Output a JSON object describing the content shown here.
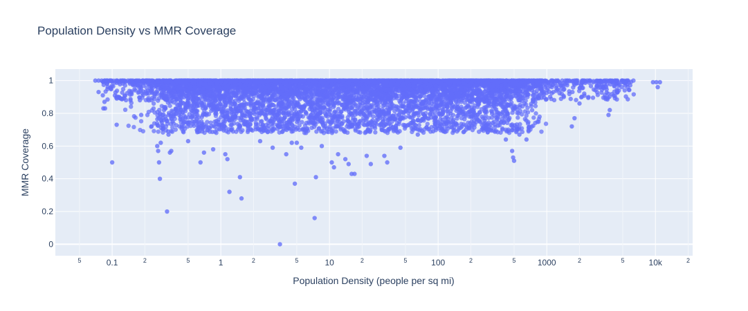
{
  "chart_data": {
    "type": "scatter",
    "title": "Population Density vs MMR Coverage",
    "xlabel": "Population Density (people per sq mi)",
    "ylabel": "MMR Coverage",
    "x_scale": "log",
    "xlim": [
      0.03,
      22000
    ],
    "ylim": [
      -0.07,
      1.07
    ],
    "grid": true,
    "y_ticks": [
      "0",
      "0.2",
      "0.4",
      "0.6",
      "0.8",
      "1"
    ],
    "x_major_ticks": [
      {
        "value": 0.1,
        "label": "0.1"
      },
      {
        "value": 1,
        "label": "1"
      },
      {
        "value": 10,
        "label": "10"
      },
      {
        "value": 100,
        "label": "100"
      },
      {
        "value": 1000,
        "label": "1000"
      },
      {
        "value": 10000,
        "label": "10k"
      }
    ],
    "x_minor_ticks": [
      {
        "value": 0.05,
        "label": "5"
      },
      {
        "value": 0.2,
        "label": "2"
      },
      {
        "value": 0.5,
        "label": "5"
      },
      {
        "value": 2,
        "label": "2"
      },
      {
        "value": 5,
        "label": "5"
      },
      {
        "value": 20,
        "label": "2"
      },
      {
        "value": 50,
        "label": "5"
      },
      {
        "value": 200,
        "label": "2"
      },
      {
        "value": 500,
        "label": "5"
      },
      {
        "value": 2000,
        "label": "2"
      },
      {
        "value": 5000,
        "label": "5"
      },
      {
        "value": 20000,
        "label": "2"
      }
    ],
    "marker_color": "#636efa",
    "plot_bg": "#e5ecf6",
    "series": [
      {
        "points": [
          [
            0.07,
            1.0
          ],
          [
            0.075,
            1.0
          ],
          [
            0.08,
            1.0
          ],
          [
            0.085,
            1.0
          ],
          [
            0.09,
            1.0
          ],
          [
            0.095,
            1.0
          ],
          [
            0.075,
            0.93
          ],
          [
            0.082,
            0.91
          ],
          [
            0.085,
            0.87
          ],
          [
            0.083,
            0.83
          ],
          [
            0.086,
            0.83
          ],
          [
            0.09,
            0.98
          ],
          [
            0.1,
            0.5
          ],
          [
            0.11,
            0.73
          ],
          [
            0.115,
            0.9
          ],
          [
            0.12,
            0.89
          ],
          [
            0.125,
            1.0
          ],
          [
            0.13,
            1.0
          ],
          [
            0.14,
            1.0
          ],
          [
            0.17,
            0.97
          ],
          [
            0.18,
            0.88
          ],
          [
            0.185,
            0.79
          ],
          [
            0.19,
            0.92
          ],
          [
            0.25,
            0.92
          ],
          [
            0.26,
            0.6
          ],
          [
            0.265,
            0.57
          ],
          [
            0.27,
            0.5
          ],
          [
            0.275,
            0.4
          ],
          [
            0.28,
            0.62
          ],
          [
            0.3,
            0.82
          ],
          [
            0.31,
            0.78
          ],
          [
            0.32,
            0.2
          ],
          [
            0.33,
            0.67
          ],
          [
            0.34,
            0.56
          ],
          [
            0.35,
            0.57
          ],
          [
            0.36,
            0.75
          ],
          [
            0.45,
            0.69
          ],
          [
            0.5,
            0.63
          ],
          [
            0.55,
            0.75
          ],
          [
            0.65,
            0.5
          ],
          [
            0.7,
            0.56
          ],
          [
            0.85,
            0.58
          ],
          [
            1.1,
            0.55
          ],
          [
            1.15,
            0.52
          ],
          [
            1.2,
            0.32
          ],
          [
            1.5,
            0.41
          ],
          [
            1.55,
            0.28
          ],
          [
            2.3,
            0.63
          ],
          [
            3.0,
            0.59
          ],
          [
            3.5,
            0.0
          ],
          [
            4.0,
            0.55
          ],
          [
            4.5,
            0.62
          ],
          [
            5.0,
            0.62
          ],
          [
            4.8,
            0.37
          ],
          [
            5.5,
            0.59
          ],
          [
            7.5,
            0.41
          ],
          [
            7.3,
            0.16
          ],
          [
            8.5,
            0.6
          ],
          [
            10.5,
            0.5
          ],
          [
            11.0,
            0.47
          ],
          [
            12.0,
            0.55
          ],
          [
            14.0,
            0.52
          ],
          [
            15.0,
            0.49
          ],
          [
            16.0,
            0.43
          ],
          [
            17.0,
            0.43
          ],
          [
            22.0,
            0.54
          ],
          [
            24.0,
            0.49
          ],
          [
            32.0,
            0.54
          ],
          [
            34.0,
            0.5
          ],
          [
            45.0,
            0.59
          ],
          [
            65.0,
            0.67
          ],
          [
            90.0,
            0.69
          ],
          [
            180.0,
            0.7
          ],
          [
            420.0,
            0.64
          ],
          [
            480.0,
            0.57
          ],
          [
            500.0,
            0.51
          ],
          [
            490.0,
            0.53
          ],
          [
            560.0,
            0.67
          ],
          [
            650.0,
            0.64
          ],
          [
            680.0,
            0.69
          ],
          [
            1700.0,
            0.72
          ],
          [
            1800.0,
            0.77
          ],
          [
            2000.0,
            0.86
          ],
          [
            3700.0,
            0.79
          ],
          [
            3800.0,
            0.82
          ],
          [
            4900.0,
            0.99
          ],
          [
            5100.0,
            0.99
          ],
          [
            9500.0,
            0.99
          ],
          [
            10200.0,
            0.99
          ],
          [
            10500.0,
            0.96
          ],
          [
            11000.0,
            0.99
          ]
        ]
      }
    ]
  }
}
